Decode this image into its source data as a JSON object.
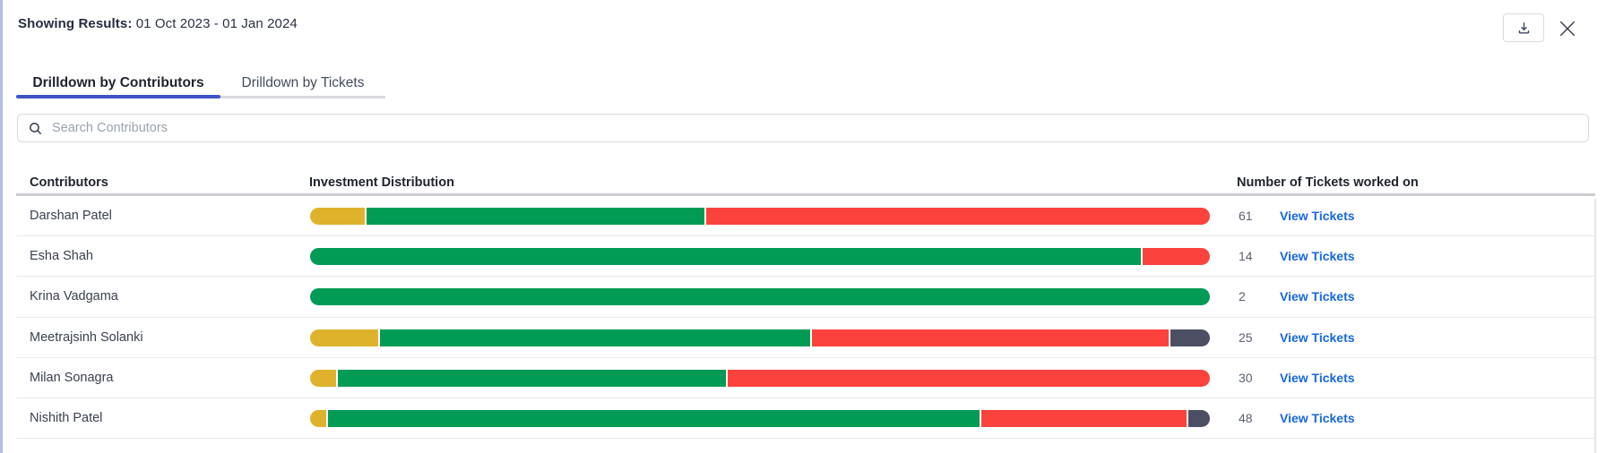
{
  "header": {
    "showing_results_label": "Showing Results:",
    "showing_results_value": " 01 Oct 2023 - 01 Jan 2024"
  },
  "tabs": [
    {
      "label": "Drilldown by Contributors",
      "active": true
    },
    {
      "label": "Drilldown by Tickets",
      "active": false
    }
  ],
  "search": {
    "placeholder": "Search Contributors"
  },
  "table": {
    "columns": [
      "Contributors",
      "Investment Distribution",
      "Number of Tickets worked on"
    ],
    "view_tickets_label": "View Tickets",
    "rows": [
      {
        "name": "Darshan Patel",
        "tickets": "61",
        "segments": [
          {
            "color": "yellow",
            "pct": 6.3
          },
          {
            "color": "green",
            "pct": 37.7
          },
          {
            "color": "red",
            "pct": 56.0
          }
        ]
      },
      {
        "name": "Esha Shah",
        "tickets": "14",
        "segments": [
          {
            "color": "green",
            "pct": 92.5
          },
          {
            "color": "red",
            "pct": 7.5
          }
        ]
      },
      {
        "name": "Krina Vadgama",
        "tickets": "2",
        "segments": [
          {
            "color": "green",
            "pct": 100
          }
        ]
      },
      {
        "name": "Meetrajsinh Solanki",
        "tickets": "25",
        "segments": [
          {
            "color": "yellow",
            "pct": 7.8
          },
          {
            "color": "green",
            "pct": 48.0
          },
          {
            "color": "red",
            "pct": 39.8
          },
          {
            "color": "dark",
            "pct": 4.4
          }
        ]
      },
      {
        "name": "Milan Sonagra",
        "tickets": "30",
        "segments": [
          {
            "color": "yellow",
            "pct": 3.1
          },
          {
            "color": "green",
            "pct": 43.3
          },
          {
            "color": "red",
            "pct": 53.6
          }
        ]
      },
      {
        "name": "Nishith Patel",
        "tickets": "48",
        "segments": [
          {
            "color": "yellow",
            "pct": 2.0
          },
          {
            "color": "green",
            "pct": 72.6
          },
          {
            "color": "red",
            "pct": 23.0
          },
          {
            "color": "dark",
            "pct": 2.4
          }
        ]
      }
    ]
  },
  "colors": {
    "yellow": "#dfb22b",
    "green": "#029b56",
    "red": "#fb423d",
    "dark": "#4c4e63",
    "link_blue": "#1767e2",
    "tab_active_underline": "#3d53c6"
  },
  "icons": {
    "download": "download-icon",
    "close": "close-icon",
    "search": "search-icon"
  }
}
